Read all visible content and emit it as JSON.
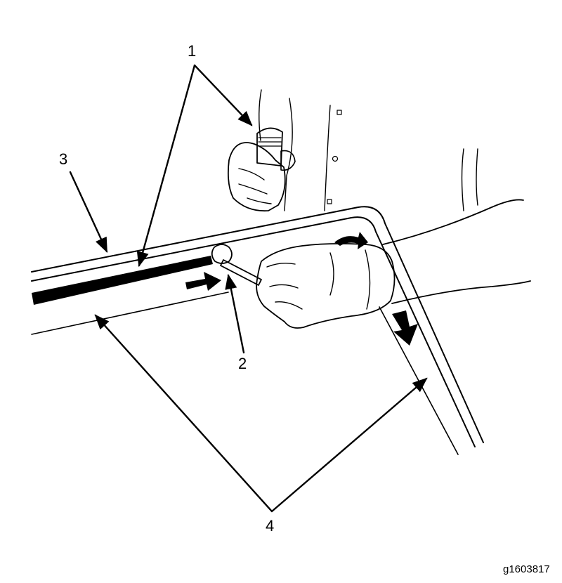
{
  "callouts": {
    "c1": "1",
    "c2": "2",
    "c3": "3",
    "c4": "4"
  },
  "figure_id": "g1603817",
  "colors": {
    "ink": "#000000",
    "paper": "#ffffff"
  }
}
